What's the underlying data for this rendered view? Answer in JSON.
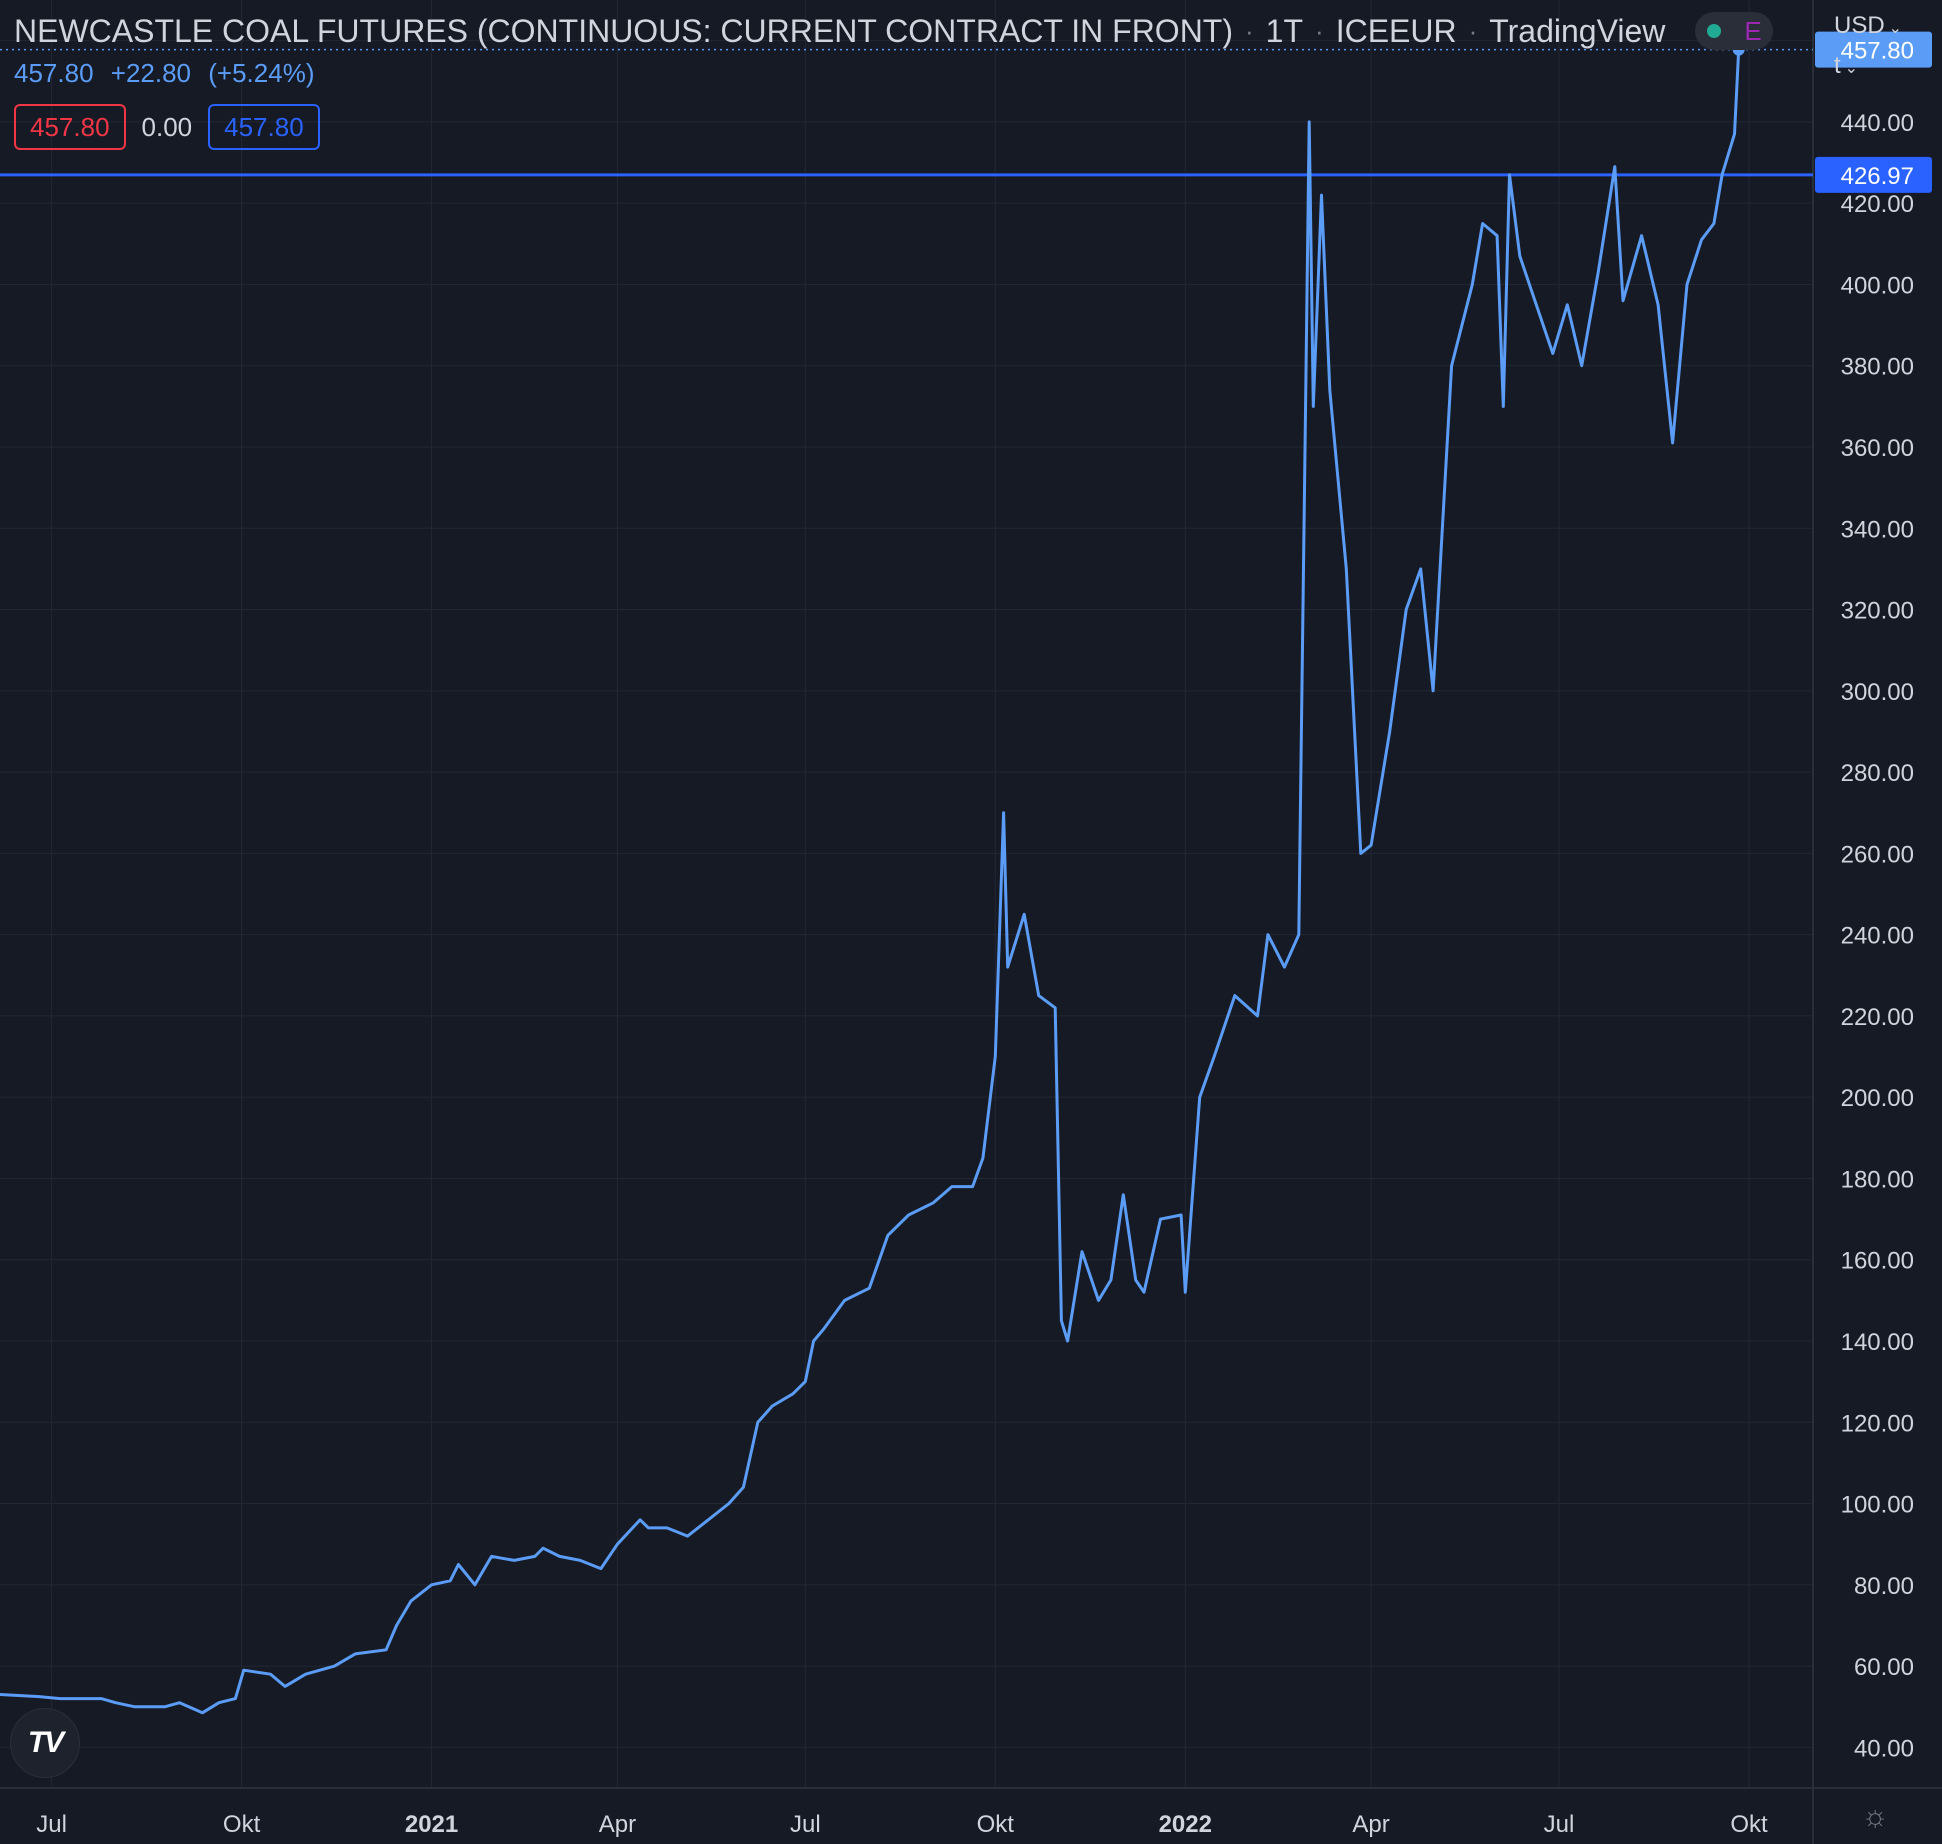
{
  "header": {
    "title": "NEWCASTLE COAL FUTURES (CONTINUOUS: CURRENT CONTRACT IN FRONT)",
    "interval": "1T",
    "exchange": "ICEEUR",
    "source": "TradingView",
    "status_letter": "E"
  },
  "quote": {
    "last": "457.80",
    "change": "+22.80",
    "change_pct": "(+5.24%)",
    "bid": "457.80",
    "spread": "0.00",
    "ask": "457.80"
  },
  "scale": {
    "currency": "USD",
    "unit": "t"
  },
  "colors": {
    "background": "#161a25",
    "line": "#5b9cf6",
    "hline": "#2962ff",
    "grid": "#232733",
    "text": "#d1d4dc"
  },
  "icons": {
    "logo": "tradingview-logo-icon",
    "settings": "gear-icon",
    "dropdown": "chevron-down-icon"
  },
  "chart_data": {
    "type": "line",
    "ylim": [
      30,
      470
    ],
    "y_ticks": [
      40,
      60,
      80,
      100,
      120,
      140,
      160,
      180,
      200,
      220,
      240,
      260,
      280,
      300,
      320,
      340,
      360,
      380,
      400,
      420,
      440,
      460
    ],
    "y_tick_labels": [
      "40.00",
      "60.00",
      "80.00",
      "100.00",
      "120.00",
      "140.00",
      "160.00",
      "180.00",
      "200.00",
      "220.00",
      "240.00",
      "260.00",
      "280.00",
      "300.00",
      "320.00",
      "340.00",
      "360.00",
      "380.00",
      "400.00",
      "420.00",
      "440.00",
      "460.00"
    ],
    "xlim": [
      "2020-06-06",
      "2022-11-01"
    ],
    "x_ticks": [
      {
        "date": "2020-07-01",
        "label": "Jul",
        "bold": false
      },
      {
        "date": "2020-10-01",
        "label": "Okt",
        "bold": false
      },
      {
        "date": "2021-01-01",
        "label": "2021",
        "bold": true
      },
      {
        "date": "2021-04-01",
        "label": "Apr",
        "bold": false
      },
      {
        "date": "2021-07-01",
        "label": "Jul",
        "bold": false
      },
      {
        "date": "2021-10-01",
        "label": "Okt",
        "bold": false
      },
      {
        "date": "2022-01-01",
        "label": "2022",
        "bold": true
      },
      {
        "date": "2022-04-01",
        "label": "Apr",
        "bold": false
      },
      {
        "date": "2022-07-01",
        "label": "Jul",
        "bold": false
      },
      {
        "date": "2022-10-01",
        "label": "Okt",
        "bold": false
      }
    ],
    "horizontal_line": {
      "value": 426.97,
      "label": "426.97"
    },
    "last_value": {
      "value": 457.8,
      "label": "457.80"
    },
    "series": [
      {
        "values": [
          [
            "2020-06-06",
            53
          ],
          [
            "2020-06-25",
            52.5
          ],
          [
            "2020-07-05",
            52
          ],
          [
            "2020-07-25",
            52
          ],
          [
            "2020-08-01",
            51
          ],
          [
            "2020-08-10",
            50
          ],
          [
            "2020-08-25",
            50
          ],
          [
            "2020-09-01",
            51
          ],
          [
            "2020-09-12",
            48.5
          ],
          [
            "2020-09-20",
            51
          ],
          [
            "2020-09-28",
            52
          ],
          [
            "2020-10-02",
            59
          ],
          [
            "2020-10-15",
            58
          ],
          [
            "2020-10-22",
            55
          ],
          [
            "2020-11-01",
            58
          ],
          [
            "2020-11-15",
            60
          ],
          [
            "2020-11-25",
            63
          ],
          [
            "2020-12-10",
            64
          ],
          [
            "2020-12-15",
            70
          ],
          [
            "2020-12-22",
            76
          ],
          [
            "2021-01-01",
            80
          ],
          [
            "2021-01-10",
            81
          ],
          [
            "2021-01-14",
            85
          ],
          [
            "2021-01-22",
            80
          ],
          [
            "2021-01-30",
            87
          ],
          [
            "2021-02-10",
            86
          ],
          [
            "2021-02-20",
            87
          ],
          [
            "2021-02-24",
            89
          ],
          [
            "2021-03-04",
            87
          ],
          [
            "2021-03-14",
            86
          ],
          [
            "2021-03-24",
            84
          ],
          [
            "2021-04-01",
            90
          ],
          [
            "2021-04-12",
            96
          ],
          [
            "2021-04-16",
            94
          ],
          [
            "2021-04-25",
            94
          ],
          [
            "2021-05-05",
            92
          ],
          [
            "2021-05-15",
            96
          ],
          [
            "2021-05-25",
            100
          ],
          [
            "2021-06-01",
            104
          ],
          [
            "2021-06-08",
            120
          ],
          [
            "2021-06-15",
            124
          ],
          [
            "2021-06-25",
            127
          ],
          [
            "2021-07-01",
            130
          ],
          [
            "2021-07-05",
            140
          ],
          [
            "2021-07-10",
            143
          ],
          [
            "2021-07-20",
            150
          ],
          [
            "2021-08-01",
            153
          ],
          [
            "2021-08-10",
            166
          ],
          [
            "2021-08-20",
            171
          ],
          [
            "2021-09-01",
            174
          ],
          [
            "2021-09-10",
            178
          ],
          [
            "2021-09-20",
            178
          ],
          [
            "2021-09-25",
            185
          ],
          [
            "2021-10-01",
            210
          ],
          [
            "2021-10-05",
            270
          ],
          [
            "2021-10-07",
            232
          ],
          [
            "2021-10-15",
            245
          ],
          [
            "2021-10-22",
            225
          ],
          [
            "2021-10-30",
            222
          ],
          [
            "2021-11-02",
            145
          ],
          [
            "2021-11-05",
            140
          ],
          [
            "2021-11-12",
            162
          ],
          [
            "2021-11-20",
            150
          ],
          [
            "2021-11-26",
            155
          ],
          [
            "2021-12-02",
            176
          ],
          [
            "2021-12-08",
            155
          ],
          [
            "2021-12-12",
            152
          ],
          [
            "2021-12-20",
            170
          ],
          [
            "2021-12-30",
            171
          ],
          [
            "2022-01-01",
            152
          ],
          [
            "2022-01-08",
            200
          ],
          [
            "2022-01-15",
            210
          ],
          [
            "2022-01-25",
            225
          ],
          [
            "2022-02-05",
            220
          ],
          [
            "2022-02-10",
            240
          ],
          [
            "2022-02-18",
            232
          ],
          [
            "2022-02-25",
            240
          ],
          [
            "2022-03-02",
            440
          ],
          [
            "2022-03-04",
            370
          ],
          [
            "2022-03-08",
            422
          ],
          [
            "2022-03-12",
            374
          ],
          [
            "2022-03-20",
            330
          ],
          [
            "2022-03-27",
            260
          ],
          [
            "2022-04-01",
            262
          ],
          [
            "2022-04-10",
            290
          ],
          [
            "2022-04-18",
            320
          ],
          [
            "2022-04-25",
            330
          ],
          [
            "2022-05-01",
            300
          ],
          [
            "2022-05-10",
            380
          ],
          [
            "2022-05-20",
            400
          ],
          [
            "2022-05-25",
            415
          ],
          [
            "2022-06-01",
            412
          ],
          [
            "2022-06-04",
            370
          ],
          [
            "2022-06-07",
            427
          ],
          [
            "2022-06-12",
            407
          ],
          [
            "2022-06-20",
            395
          ],
          [
            "2022-06-28",
            383
          ],
          [
            "2022-07-05",
            395
          ],
          [
            "2022-07-12",
            380
          ],
          [
            "2022-07-20",
            403
          ],
          [
            "2022-07-28",
            429
          ],
          [
            "2022-08-01",
            396
          ],
          [
            "2022-08-10",
            412
          ],
          [
            "2022-08-18",
            395
          ],
          [
            "2022-08-25",
            361
          ],
          [
            "2022-09-01",
            400
          ],
          [
            "2022-09-08",
            411
          ],
          [
            "2022-09-14",
            415
          ],
          [
            "2022-09-18",
            427
          ],
          [
            "2022-09-24",
            437
          ],
          [
            "2022-09-26",
            457.8
          ]
        ]
      }
    ]
  }
}
